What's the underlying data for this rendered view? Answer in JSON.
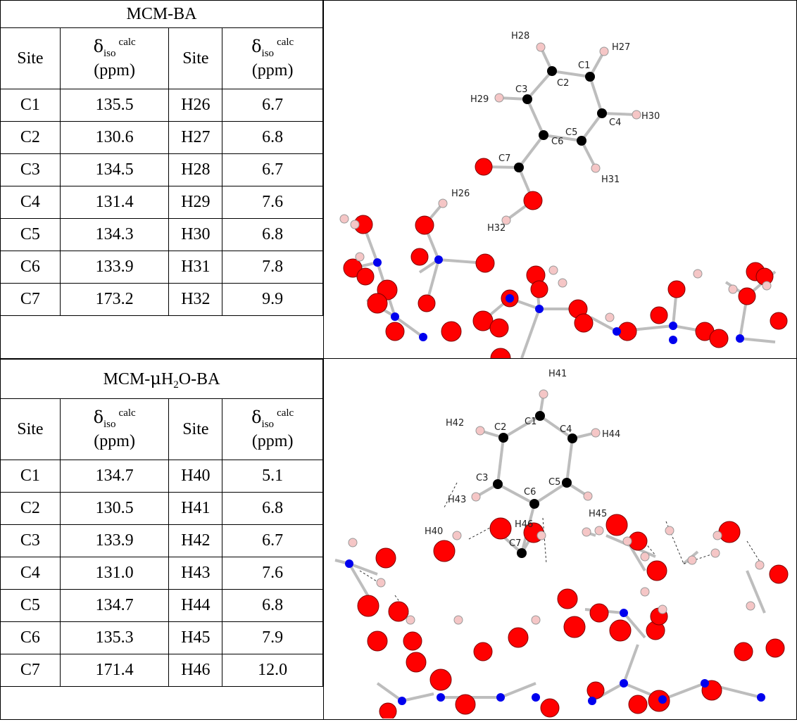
{
  "tables": [
    {
      "title": "MCM-BA",
      "header": {
        "site": "Site",
        "delta": "δ",
        "sub": "iso",
        "sup": "calc",
        "unit": "(ppm)"
      },
      "rows": [
        {
          "c_site": "C1",
          "c_val": "135.5",
          "h_site": "H26",
          "h_val": "6.7"
        },
        {
          "c_site": "C2",
          "c_val": "130.6",
          "h_site": "H27",
          "h_val": "6.8"
        },
        {
          "c_site": "C3",
          "c_val": "134.5",
          "h_site": "H28",
          "h_val": "6.7"
        },
        {
          "c_site": "C4",
          "c_val": "131.4",
          "h_site": "H29",
          "h_val": "7.6"
        },
        {
          "c_site": "C5",
          "c_val": "134.3",
          "h_site": "H30",
          "h_val": "6.8"
        },
        {
          "c_site": "C6",
          "c_val": "133.9",
          "h_site": "H31",
          "h_val": "7.8"
        },
        {
          "c_site": "C7",
          "c_val": "173.2",
          "h_site": "H32",
          "h_val": "9.9"
        }
      ]
    },
    {
      "title_a": "MCM-",
      "title_mu": "μ",
      "title_b": "H",
      "title_sub": "2",
      "title_c": "O-BA",
      "header": {
        "site": "Site",
        "delta": "δ",
        "sub": "iso",
        "sup": "calc",
        "unit": "(ppm)"
      },
      "rows": [
        {
          "c_site": "C1",
          "c_val": "134.7",
          "h_site": "H40",
          "h_val": "5.1"
        },
        {
          "c_site": "C2",
          "c_val": "130.5",
          "h_site": "H41",
          "h_val": "6.8"
        },
        {
          "c_site": "C3",
          "c_val": "133.9",
          "h_site": "H42",
          "h_val": "6.7"
        },
        {
          "c_site": "C4",
          "c_val": "131.0",
          "h_site": "H43",
          "h_val": "7.6"
        },
        {
          "c_site": "C5",
          "c_val": "134.7",
          "h_site": "H44",
          "h_val": "6.8"
        },
        {
          "c_site": "C6",
          "c_val": "135.3",
          "h_site": "H45",
          "h_val": "7.9"
        },
        {
          "c_site": "C7",
          "c_val": "171.4",
          "h_site": "H46",
          "h_val": "12.0"
        }
      ]
    }
  ],
  "structure_labels_top": [
    "H28",
    "H27",
    "C1",
    "C2",
    "C3",
    "H29",
    "C4",
    "H30",
    "C5",
    "C6",
    "C7",
    "H31",
    "H26",
    "H32"
  ],
  "structure_labels_bottom": [
    "H41",
    "H42",
    "C2",
    "C1",
    "C4",
    "H44",
    "C3",
    "C6",
    "C5",
    "H43",
    "H45",
    "C7",
    "H40",
    "H46"
  ],
  "colors": {
    "oxygen": "#ff0000",
    "silicon": "#0000ee",
    "carbon": "#000000",
    "hydrogen": "#f5c6c6",
    "bond": "#bdbdbd"
  }
}
